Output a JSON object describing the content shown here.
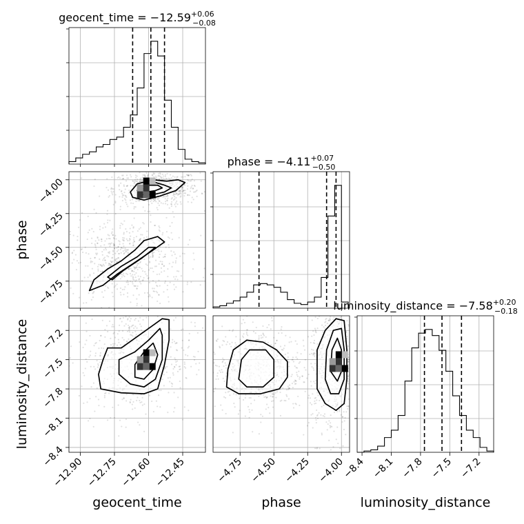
{
  "chart_data": {
    "type": "corner",
    "parameters": [
      "geocent_time",
      "phase",
      "luminosity_distance"
    ],
    "titles": [
      {
        "param": "geocent_time",
        "prefix": "geocent_time = ",
        "value": "−12.59",
        "plus": "+0.06",
        "minus": "−0.08"
      },
      {
        "param": "phase",
        "prefix": "phase = ",
        "value": "−4.11",
        "plus": "+0.07",
        "minus": "−0.50"
      },
      {
        "param": "luminosity_distance",
        "prefix": "luminosity_distance = ",
        "value": "−7.58",
        "plus": "+0.20",
        "minus": "−0.18"
      }
    ],
    "axes": {
      "geocent_time": {
        "range": [
          -12.95,
          -12.35
        ],
        "ticks": [
          -12.9,
          -12.75,
          -12.6,
          -12.45
        ],
        "tick_labels": [
          "−12.90",
          "−12.75",
          "−12.60",
          "−12.45"
        ],
        "quantiles": [
          -12.67,
          -12.59,
          -12.53
        ]
      },
      "phase": {
        "range": [
          -4.95,
          -3.94
        ],
        "ticks": [
          -4.75,
          -4.5,
          -4.25,
          -4.0
        ],
        "tick_labels": [
          "−4.75",
          "−4.50",
          "−4.25",
          "−4.00"
        ],
        "quantiles": [
          -4.61,
          -4.11,
          -4.04
        ]
      },
      "luminosity_distance": {
        "range": [
          -8.45,
          -7.05
        ],
        "ticks": [
          -8.4,
          -8.1,
          -7.8,
          -7.5,
          -7.2
        ],
        "tick_labels": [
          "−8.4",
          "−8.1",
          "−7.8",
          "−7.5",
          "−7.2"
        ],
        "quantiles": [
          -7.76,
          -7.58,
          -7.38
        ]
      }
    },
    "histograms": {
      "geocent_time": {
        "edges": [
          -12.95,
          -12.92,
          -12.89,
          -12.86,
          -12.83,
          -12.8,
          -12.77,
          -12.74,
          -12.71,
          -12.68,
          -12.65,
          -12.62,
          -12.59,
          -12.56,
          -12.53,
          -12.5,
          -12.47,
          -12.44,
          -12.41,
          -12.38,
          -12.35
        ],
        "counts": [
          0.02,
          0.05,
          0.08,
          0.1,
          0.14,
          0.16,
          0.2,
          0.22,
          0.3,
          0.4,
          0.62,
          0.9,
          1.0,
          0.88,
          0.52,
          0.3,
          0.12,
          0.04,
          0.02,
          0.01
        ]
      },
      "phase": {
        "edges": [
          -4.95,
          -4.9,
          -4.85,
          -4.8,
          -4.75,
          -4.7,
          -4.65,
          -4.6,
          -4.55,
          -4.5,
          -4.45,
          -4.4,
          -4.35,
          -4.3,
          -4.25,
          -4.2,
          -4.15,
          -4.1,
          -4.05,
          -4.0,
          -3.95
        ],
        "counts": [
          0.01,
          0.02,
          0.04,
          0.06,
          0.09,
          0.13,
          0.19,
          0.2,
          0.19,
          0.17,
          0.13,
          0.07,
          0.04,
          0.03,
          0.05,
          0.09,
          0.25,
          0.75,
          1.0,
          0.05
        ]
      },
      "luminosity_distance": {
        "edges": [
          -8.45,
          -8.38,
          -8.31,
          -8.24,
          -8.17,
          -8.1,
          -8.03,
          -7.96,
          -7.89,
          -7.82,
          -7.75,
          -7.68,
          -7.61,
          -7.54,
          -7.47,
          -7.4,
          -7.33,
          -7.26,
          -7.19,
          -7.12,
          -7.05
        ],
        "counts": [
          0.0,
          0.01,
          0.02,
          0.05,
          0.12,
          0.18,
          0.3,
          0.58,
          0.85,
          0.97,
          1.0,
          0.95,
          0.83,
          0.66,
          0.46,
          0.3,
          0.18,
          0.12,
          0.04,
          0.01
        ]
      }
    },
    "contours_2d": [
      {
        "x": "geocent_time",
        "y": "phase",
        "levels": [
          [
            [
              -12.68,
              -4.09
            ],
            [
              -12.65,
              -4.03
            ],
            [
              -12.58,
              -4.0
            ],
            [
              -12.52,
              -4.01
            ],
            [
              -12.47,
              -4.0
            ],
            [
              -12.44,
              -4.02
            ],
            [
              -12.48,
              -4.08
            ],
            [
              -12.55,
              -4.12
            ],
            [
              -12.62,
              -4.15
            ],
            [
              -12.67,
              -4.13
            ]
          ],
          [
            [
              -12.65,
              -4.08
            ],
            [
              -12.62,
              -4.04
            ],
            [
              -12.57,
              -4.02
            ],
            [
              -12.53,
              -4.04
            ],
            [
              -12.5,
              -4.06
            ],
            [
              -12.53,
              -4.09
            ],
            [
              -12.58,
              -4.11
            ],
            [
              -12.63,
              -4.11
            ]
          ],
          [
            [
              -12.63,
              -4.07
            ],
            [
              -12.6,
              -4.04
            ],
            [
              -12.56,
              -4.04
            ],
            [
              -12.54,
              -4.06
            ],
            [
              -12.57,
              -4.08
            ],
            [
              -12.61,
              -4.09
            ]
          ],
          [
            [
              -12.86,
              -4.82
            ],
            [
              -12.84,
              -4.74
            ],
            [
              -12.78,
              -4.66
            ],
            [
              -12.72,
              -4.6
            ],
            [
              -12.66,
              -4.52
            ],
            [
              -12.62,
              -4.45
            ],
            [
              -12.56,
              -4.42
            ],
            [
              -12.53,
              -4.46
            ],
            [
              -12.58,
              -4.52
            ],
            [
              -12.65,
              -4.6
            ],
            [
              -12.74,
              -4.7
            ],
            [
              -12.8,
              -4.78
            ]
          ],
          [
            [
              -12.78,
              -4.72
            ],
            [
              -12.72,
              -4.64
            ],
            [
              -12.65,
              -4.57
            ],
            [
              -12.6,
              -4.5
            ],
            [
              -12.57,
              -4.5
            ],
            [
              -12.63,
              -4.58
            ],
            [
              -12.71,
              -4.67
            ],
            [
              -12.76,
              -4.74
            ]
          ]
        ]
      },
      {
        "x": "geocent_time",
        "y": "luminosity_distance",
        "levels": [
          [
            [
              -12.78,
              -7.38
            ],
            [
              -12.72,
              -7.38
            ],
            [
              -12.66,
              -7.28
            ],
            [
              -12.6,
              -7.18
            ],
            [
              -12.54,
              -7.08
            ],
            [
              -12.51,
              -7.09
            ],
            [
              -12.51,
              -7.3
            ],
            [
              -12.53,
              -7.55
            ],
            [
              -12.56,
              -7.8
            ],
            [
              -12.62,
              -7.85
            ],
            [
              -12.72,
              -7.84
            ],
            [
              -12.81,
              -7.8
            ],
            [
              -12.82,
              -7.65
            ],
            [
              -12.8,
              -7.5
            ]
          ],
          [
            [
              -12.73,
              -7.5
            ],
            [
              -12.66,
              -7.42
            ],
            [
              -12.6,
              -7.3
            ],
            [
              -12.55,
              -7.18
            ],
            [
              -12.54,
              -7.25
            ],
            [
              -12.54,
              -7.5
            ],
            [
              -12.57,
              -7.7
            ],
            [
              -12.62,
              -7.78
            ],
            [
              -12.68,
              -7.75
            ],
            [
              -12.73,
              -7.65
            ]
          ],
          [
            [
              -12.66,
              -7.55
            ],
            [
              -12.62,
              -7.42
            ],
            [
              -12.58,
              -7.33
            ],
            [
              -12.56,
              -7.45
            ],
            [
              -12.58,
              -7.6
            ],
            [
              -12.62,
              -7.7
            ],
            [
              -12.66,
              -7.68
            ]
          ]
        ]
      },
      {
        "x": "phase",
        "y": "luminosity_distance",
        "levels": [
          [
            [
              -4.85,
              -7.78
            ],
            [
              -4.84,
              -7.6
            ],
            [
              -4.8,
              -7.4
            ],
            [
              -4.7,
              -7.3
            ],
            [
              -4.58,
              -7.32
            ],
            [
              -4.48,
              -7.4
            ],
            [
              -4.4,
              -7.52
            ],
            [
              -4.4,
              -7.68
            ],
            [
              -4.46,
              -7.8
            ],
            [
              -4.6,
              -7.85
            ],
            [
              -4.76,
              -7.85
            ]
          ],
          [
            [
              -4.76,
              -7.7
            ],
            [
              -4.74,
              -7.5
            ],
            [
              -4.68,
              -7.4
            ],
            [
              -4.56,
              -7.4
            ],
            [
              -4.5,
              -7.5
            ],
            [
              -4.5,
              -7.68
            ],
            [
              -4.58,
              -7.78
            ],
            [
              -4.7,
              -7.78
            ]
          ],
          [
            [
              -4.18,
              -7.8
            ],
            [
              -4.18,
              -7.4
            ],
            [
              -4.12,
              -7.2
            ],
            [
              -4.04,
              -7.08
            ],
            [
              -3.98,
              -7.1
            ],
            [
              -3.96,
              -7.4
            ],
            [
              -3.96,
              -7.7
            ],
            [
              -3.98,
              -7.95
            ],
            [
              -4.04,
              -8.02
            ],
            [
              -4.12,
              -7.95
            ]
          ],
          [
            [
              -4.12,
              -7.7
            ],
            [
              -4.11,
              -7.4
            ],
            [
              -4.06,
              -7.2
            ],
            [
              -4.0,
              -7.18
            ],
            [
              -3.98,
              -7.4
            ],
            [
              -3.98,
              -7.7
            ],
            [
              -4.02,
              -7.85
            ],
            [
              -4.08,
              -7.85
            ]
          ],
          [
            [
              -4.08,
              -7.62
            ],
            [
              -4.07,
              -7.4
            ],
            [
              -4.03,
              -7.28
            ],
            [
              -4.0,
              -7.4
            ],
            [
              -4.0,
              -7.62
            ],
            [
              -4.03,
              -7.72
            ]
          ]
        ]
      }
    ],
    "density_peaks": [
      {
        "x": "geocent_time",
        "y": "phase",
        "center": [
          -12.61,
          -4.06
        ]
      },
      {
        "x": "geocent_time",
        "y": "luminosity_distance",
        "center": [
          -12.61,
          -7.5
        ]
      },
      {
        "x": "phase",
        "y": "luminosity_distance",
        "center": [
          -4.02,
          -7.52
        ]
      }
    ],
    "grid": true
  }
}
